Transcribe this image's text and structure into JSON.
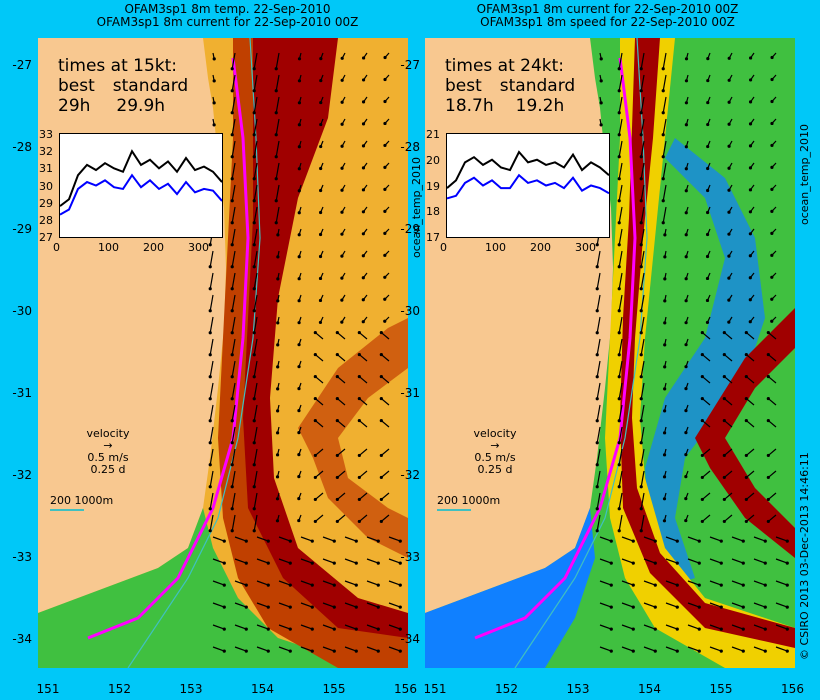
{
  "left_panel": {
    "title_line1": "OFAM3sp1 8m temp. 22-Sep-2010",
    "title_line2": "OFAM3sp1 8m current for 22-Sep-2010 00Z",
    "times_heading": "times at 15kt:",
    "best_label": "best",
    "standard_label": "standard",
    "best_value": "29h",
    "standard_value": "29.9h",
    "inset_y_ticks": [
      "33",
      "32",
      "31",
      "30",
      "29",
      "28",
      "27"
    ],
    "inset_x_ticks": [
      "0",
      "100",
      "200",
      "300"
    ],
    "velocity_label": "velocity",
    "velocity_speed": "0.5 m/s",
    "velocity_time": "0.25 d",
    "scale_label": "200  1000m"
  },
  "right_panel": {
    "title_line1": "OFAM3sp1 8m current for 22-Sep-2010 00Z",
    "title_line2": "OFAM3sp1 8m speed for 22-Sep-2010 00Z",
    "times_heading": "times at 24kt:",
    "best_label": "best",
    "standard_label": "standard",
    "best_value": "18.7h",
    "standard_value": "19.2h",
    "inset_y_ticks": [
      "21",
      "20",
      "19",
      "18",
      "17"
    ],
    "inset_x_ticks": [
      "0",
      "100",
      "200",
      "300"
    ],
    "velocity_label": "velocity",
    "velocity_speed": "0.5 m/s",
    "velocity_time": "0.25 d",
    "scale_label": "200  1000m"
  },
  "y_axis_ticks": [
    "-27",
    "-28",
    "-29",
    "-30",
    "-31",
    "-32",
    "-33",
    "-34"
  ],
  "x_axis_ticks_left": [
    "151",
    "152",
    "153",
    "154",
    "155",
    "156"
  ],
  "x_axis_ticks_right": [
    "151",
    "152",
    "153",
    "154",
    "155",
    "156"
  ],
  "side_label_left": "ocean_temp_2010",
  "side_label_right": "ocean_temp_2010",
  "credit": "© CSIRO 2013   03-Dec-2013 14:46:11",
  "chart_data": [
    {
      "type": "line",
      "title": "times at 15kt",
      "xlim": [
        0,
        360
      ],
      "ylim": [
        27,
        33
      ],
      "series": [
        {
          "name": "standard",
          "color": "#000000",
          "x": [
            0,
            20,
            40,
            60,
            80,
            100,
            120,
            140,
            160,
            180,
            200,
            220,
            240,
            260,
            280,
            300,
            320,
            340,
            360
          ],
          "values": [
            28.8,
            29.2,
            30.6,
            31.2,
            30.9,
            31.3,
            31.0,
            30.8,
            32.0,
            31.2,
            31.5,
            31.0,
            31.4,
            30.8,
            31.6,
            30.9,
            31.1,
            30.8,
            30.2
          ]
        },
        {
          "name": "best",
          "color": "#0000ff",
          "x": [
            0,
            20,
            40,
            60,
            80,
            100,
            120,
            140,
            160,
            180,
            200,
            220,
            240,
            260,
            280,
            300,
            320,
            340,
            360
          ],
          "values": [
            28.3,
            28.6,
            29.8,
            30.2,
            30.0,
            30.3,
            29.9,
            29.8,
            30.6,
            29.9,
            30.3,
            29.8,
            30.1,
            29.5,
            30.2,
            29.6,
            29.8,
            29.7,
            29.1
          ]
        }
      ]
    },
    {
      "type": "line",
      "title": "times at 24kt",
      "xlim": [
        0,
        360
      ],
      "ylim": [
        17,
        21
      ],
      "series": [
        {
          "name": "standard",
          "color": "#000000",
          "x": [
            0,
            20,
            40,
            60,
            80,
            100,
            120,
            140,
            160,
            180,
            200,
            220,
            240,
            260,
            280,
            300,
            320,
            340,
            360
          ],
          "values": [
            18.9,
            19.2,
            19.9,
            20.1,
            19.8,
            20.0,
            19.7,
            19.6,
            20.3,
            19.9,
            20.0,
            19.8,
            19.9,
            19.7,
            20.2,
            19.6,
            19.9,
            19.7,
            19.4
          ]
        },
        {
          "name": "best",
          "color": "#0000ff",
          "x": [
            0,
            20,
            40,
            60,
            80,
            100,
            120,
            140,
            160,
            180,
            200,
            220,
            240,
            260,
            280,
            300,
            320,
            340,
            360
          ],
          "values": [
            18.5,
            18.6,
            19.1,
            19.3,
            19.0,
            19.2,
            18.9,
            18.9,
            19.4,
            19.1,
            19.2,
            19.0,
            19.1,
            18.9,
            19.3,
            18.8,
            19.0,
            18.9,
            18.7
          ]
        }
      ]
    }
  ],
  "colors": {
    "background": "#00c8f8",
    "land": "#f8c890",
    "temp_warm": "#a00000",
    "temp_mid": "#e08000",
    "temp_cool": "#40c040",
    "speed_high": "#a00000",
    "speed_low": "#1080ff",
    "route": "#ff00ff",
    "isobath": "#40c0c0"
  }
}
